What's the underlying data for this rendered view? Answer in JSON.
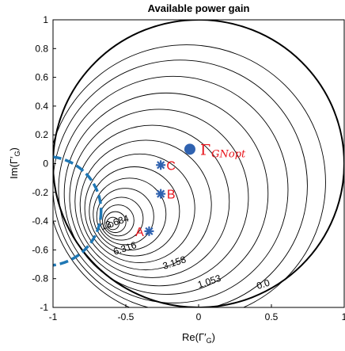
{
  "chart_data": {
    "type": "line",
    "title": "Available power gain",
    "xlabel": "Re(Γ'_G)",
    "ylabel": "Im(Γ'_G)",
    "xlim": [
      -1,
      1
    ],
    "ylim": [
      -1,
      1
    ],
    "xticks": [
      -1,
      -0.5,
      0,
      0.5,
      1
    ],
    "xtick_labels": [
      "-1",
      "-0.5",
      "0",
      "0.5",
      "1"
    ],
    "yticks": [
      1,
      0.8,
      0.6,
      0.4,
      0.2,
      0,
      -0.2,
      -0.4,
      -0.6,
      -0.8,
      -1
    ],
    "ytick_labels": [
      "1",
      "0.8",
      "0.6",
      "0.4",
      "0.2",
      "0",
      "-0.2",
      "-0.4",
      "-0.6",
      "-0.8",
      "-1"
    ],
    "grid": false,
    "tangent_point": {
      "x": -0.78,
      "y": -0.62
    },
    "contours": [
      {
        "cx": -0.083,
        "cy": -0.129,
        "r": 0.955
      },
      {
        "cx": -0.127,
        "cy": -0.154,
        "r": 0.874
      },
      {
        "cx": -0.174,
        "cy": -0.181,
        "r": 0.788
      },
      {
        "cx": -0.223,
        "cy": -0.209,
        "r": 0.7
      },
      {
        "cx": -0.272,
        "cy": -0.236,
        "r": 0.614
      },
      {
        "cx": -0.319,
        "cy": -0.263,
        "r": 0.53
      },
      {
        "cx": -0.363,
        "cy": -0.288,
        "r": 0.451
      },
      {
        "cx": -0.404,
        "cy": -0.311,
        "r": 0.378
      },
      {
        "cx": -0.441,
        "cy": -0.332,
        "r": 0.31
      },
      {
        "cx": -0.474,
        "cy": -0.351,
        "r": 0.25
      },
      {
        "cx": -0.504,
        "cy": -0.368,
        "r": 0.196
      },
      {
        "cx": -0.53,
        "cy": -0.383,
        "r": 0.149
      },
      {
        "cx": -0.552,
        "cy": -0.395,
        "r": 0.108
      },
      {
        "cx": -0.572,
        "cy": -0.407,
        "r": 0.073
      },
      {
        "cx": -0.589,
        "cy": -0.416,
        "r": 0.043
      },
      {
        "cx": -0.604,
        "cy": -0.425,
        "r": 0.017
      }
    ],
    "unit_circle": {
      "cx": 0,
      "cy": 0,
      "r": 1,
      "label": "0.0"
    },
    "stability_circle": {
      "cx": -1.05,
      "cy": -0.33,
      "r": 0.38,
      "color": "#1f77b4"
    },
    "contour_labels": [
      {
        "text": "1.053",
        "x": 0.08,
        "y": -0.84
      },
      {
        "text": "3.158",
        "x": -0.16,
        "y": -0.71
      },
      {
        "text": "6.316",
        "x": -0.5,
        "y": -0.61
      },
      {
        "text": "13.684",
        "x": -0.57,
        "y": -0.43
      },
      {
        "text": "0.0",
        "x": 0.45,
        "y": -0.86
      }
    ],
    "points": [
      {
        "name": "A",
        "x": -0.34,
        "y": -0.47,
        "marker": "asterisk"
      },
      {
        "name": "B",
        "x": -0.26,
        "y": -0.21,
        "marker": "asterisk"
      },
      {
        "name": "C",
        "x": -0.26,
        "y": -0.01,
        "marker": "asterisk"
      }
    ],
    "optimum": {
      "label": "Γ",
      "sub": "GNopt",
      "x": -0.06,
      "y": 0.1
    },
    "colors": {
      "curve": "#000000",
      "marker": "#2f62b0",
      "label": "#e8141b",
      "stability": "#1f77b4"
    }
  }
}
